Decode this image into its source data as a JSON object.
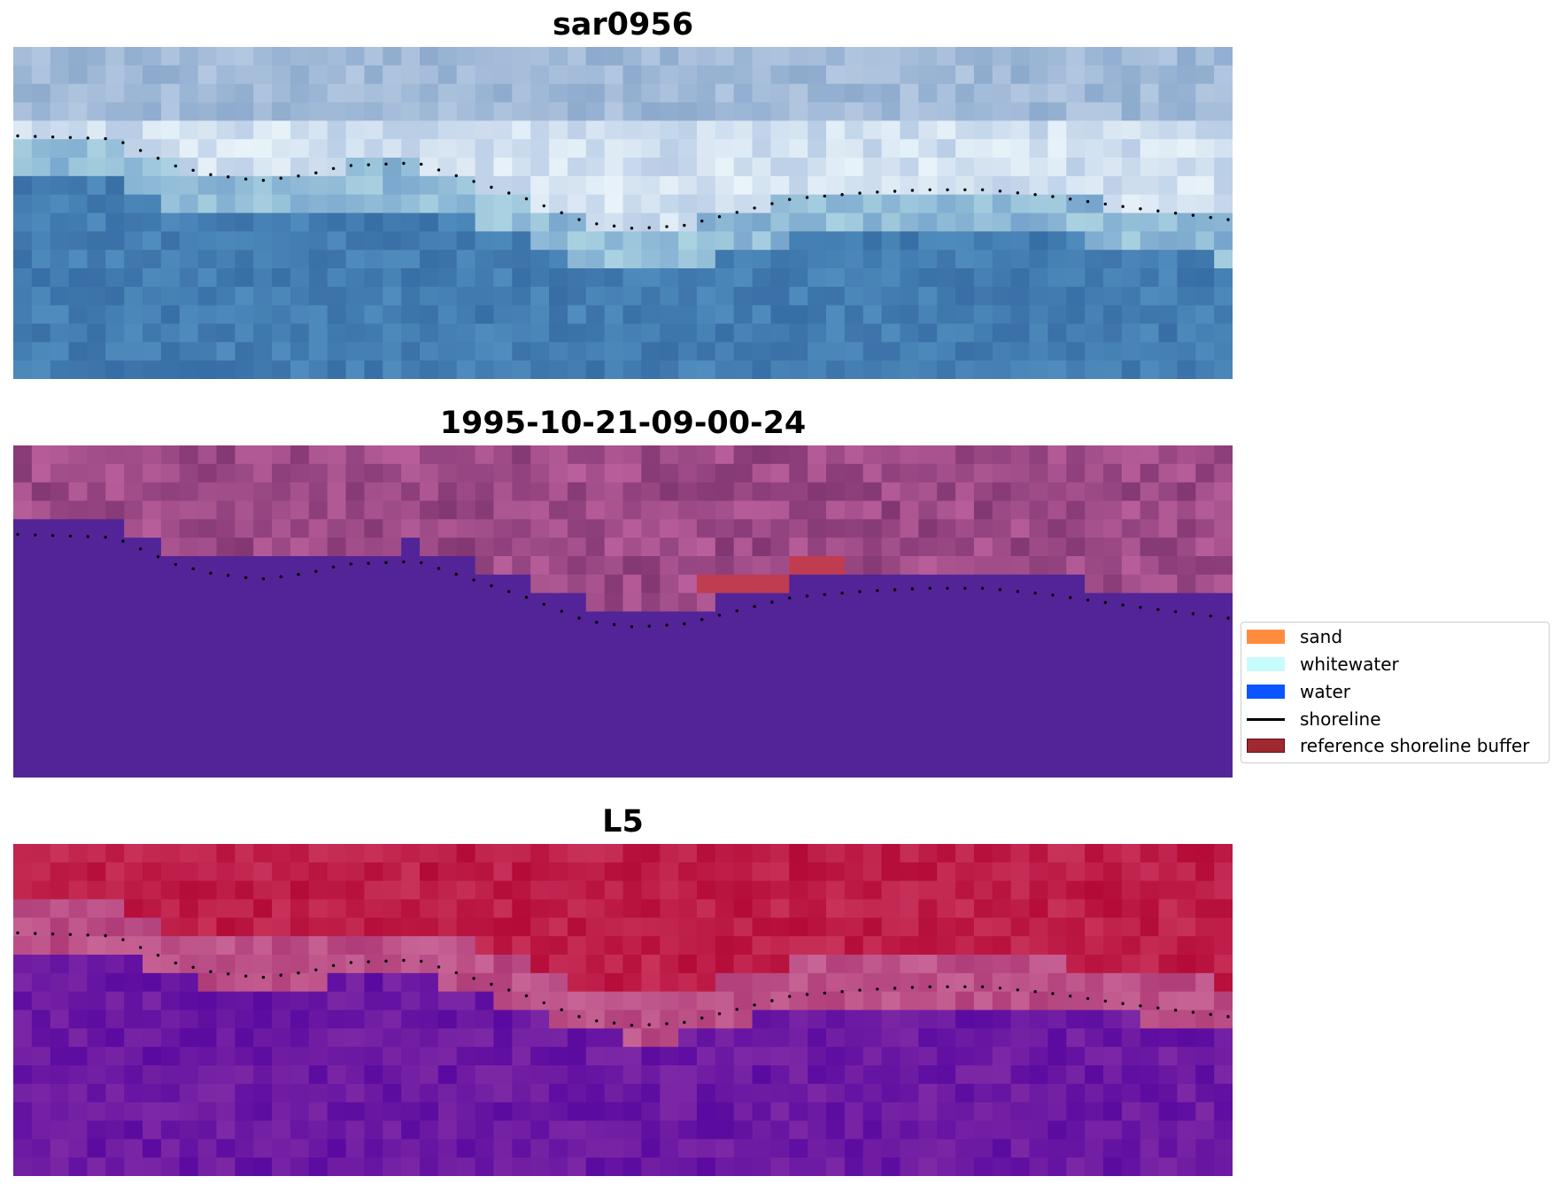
{
  "panels": [
    {
      "title": "sar0956",
      "style": "rgb"
    },
    {
      "title": "1995-10-21-09-00-24",
      "style": "classified"
    },
    {
      "title": "L5",
      "style": "index"
    }
  ],
  "legend": {
    "items": [
      {
        "label": "sand",
        "color": "#ff8c3d",
        "kind": "patch"
      },
      {
        "label": "whitewater",
        "color": "#c8fbfb",
        "kind": "patch"
      },
      {
        "label": "water",
        "color": "#0a55ff",
        "kind": "patch"
      },
      {
        "label": "shoreline",
        "color": "#000000",
        "kind": "line"
      },
      {
        "label": "reference shoreline buffer",
        "color": "#a0282f",
        "kind": "patch"
      }
    ]
  }
}
